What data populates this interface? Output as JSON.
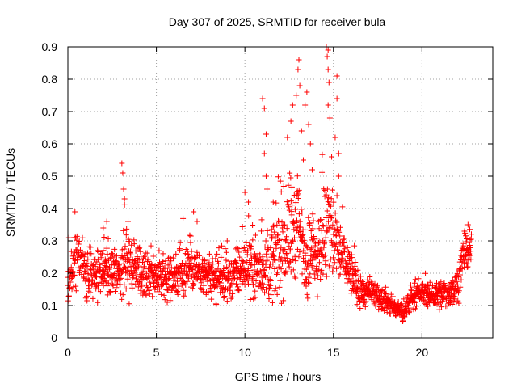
{
  "chart_data": {
    "type": "scatter",
    "title": "Day 307 of 2025, SRMTID for receiver bula",
    "xlabel": "GPS time / hours",
    "ylabel": "SRMTID / TECUs",
    "xlim": [
      0,
      24
    ],
    "ylim": [
      0,
      0.9
    ],
    "x_ticks": [
      0,
      5,
      10,
      15,
      20
    ],
    "y_ticks": [
      0,
      0.1,
      0.2,
      0.3,
      0.4,
      0.5,
      0.6,
      0.7,
      0.8,
      0.9
    ],
    "grid": true,
    "marker": "+",
    "color": "#ff0000",
    "envelope": {
      "hours": [
        0,
        0.3,
        0.5,
        1.0,
        1.5,
        2.0,
        2.5,
        3.0,
        3.2,
        3.5,
        4.0,
        5.0,
        6.0,
        6.5,
        7.0,
        7.5,
        8.0,
        9.0,
        10.0,
        10.5,
        11.0,
        11.5,
        12.0,
        12.5,
        13.0,
        13.5,
        14.0,
        14.5,
        14.8,
        15.2,
        15.6,
        16.0,
        16.5,
        17.0,
        18.0,
        18.5,
        19.0,
        19.5,
        20.0,
        20.5,
        21.0,
        21.5,
        22.0,
        22.3,
        22.8
      ],
      "median": [
        0.17,
        0.22,
        0.26,
        0.2,
        0.2,
        0.22,
        0.21,
        0.2,
        0.26,
        0.23,
        0.2,
        0.19,
        0.19,
        0.2,
        0.24,
        0.19,
        0.18,
        0.18,
        0.22,
        0.22,
        0.21,
        0.24,
        0.27,
        0.33,
        0.34,
        0.25,
        0.26,
        0.32,
        0.35,
        0.28,
        0.25,
        0.2,
        0.14,
        0.14,
        0.11,
        0.09,
        0.08,
        0.13,
        0.14,
        0.13,
        0.13,
        0.14,
        0.16,
        0.25,
        0.27
      ],
      "spread": [
        0.06,
        0.07,
        0.08,
        0.06,
        0.07,
        0.07,
        0.06,
        0.07,
        0.12,
        0.08,
        0.06,
        0.06,
        0.06,
        0.06,
        0.08,
        0.06,
        0.06,
        0.06,
        0.07,
        0.08,
        0.08,
        0.11,
        0.13,
        0.16,
        0.15,
        0.12,
        0.1,
        0.15,
        0.18,
        0.1,
        0.08,
        0.06,
        0.04,
        0.04,
        0.03,
        0.03,
        0.03,
        0.03,
        0.03,
        0.03,
        0.04,
        0.04,
        0.05,
        0.05,
        0.04
      ]
    },
    "peaks": [
      {
        "x": 0.4,
        "y": 0.39
      },
      {
        "x": 2.0,
        "y": 0.34
      },
      {
        "x": 2.2,
        "y": 0.36
      },
      {
        "x": 3.05,
        "y": 0.54
      },
      {
        "x": 3.1,
        "y": 0.51
      },
      {
        "x": 3.15,
        "y": 0.46
      },
      {
        "x": 3.2,
        "y": 0.43
      },
      {
        "x": 3.4,
        "y": 0.36
      },
      {
        "x": 7.1,
        "y": 0.39
      },
      {
        "x": 7.3,
        "y": 0.36
      },
      {
        "x": 9.0,
        "y": 0.3
      },
      {
        "x": 10.0,
        "y": 0.45
      },
      {
        "x": 10.2,
        "y": 0.42
      },
      {
        "x": 11.0,
        "y": 0.74
      },
      {
        "x": 11.1,
        "y": 0.71
      },
      {
        "x": 11.2,
        "y": 0.63
      },
      {
        "x": 11.1,
        "y": 0.57
      },
      {
        "x": 11.2,
        "y": 0.5
      },
      {
        "x": 11.25,
        "y": 0.46
      },
      {
        "x": 11.6,
        "y": 0.42
      },
      {
        "x": 12.4,
        "y": 0.62
      },
      {
        "x": 12.6,
        "y": 0.67
      },
      {
        "x": 12.7,
        "y": 0.72
      },
      {
        "x": 12.9,
        "y": 0.75
      },
      {
        "x": 13.0,
        "y": 0.83
      },
      {
        "x": 13.05,
        "y": 0.86
      },
      {
        "x": 13.1,
        "y": 0.78
      },
      {
        "x": 13.2,
        "y": 0.64
      },
      {
        "x": 13.4,
        "y": 0.72
      },
      {
        "x": 13.5,
        "y": 0.76
      },
      {
        "x": 13.6,
        "y": 0.66
      },
      {
        "x": 13.7,
        "y": 0.6
      },
      {
        "x": 13.8,
        "y": 0.52
      },
      {
        "x": 13.3,
        "y": 0.55
      },
      {
        "x": 14.6,
        "y": 0.9
      },
      {
        "x": 14.7,
        "y": 0.89
      },
      {
        "x": 14.65,
        "y": 0.87
      },
      {
        "x": 14.7,
        "y": 0.83
      },
      {
        "x": 14.75,
        "y": 0.79
      },
      {
        "x": 14.7,
        "y": 0.72
      },
      {
        "x": 14.8,
        "y": 0.68
      },
      {
        "x": 14.9,
        "y": 0.56
      },
      {
        "x": 15.2,
        "y": 0.81
      },
      {
        "x": 15.2,
        "y": 0.74
      },
      {
        "x": 15.1,
        "y": 0.62
      },
      {
        "x": 15.3,
        "y": 0.57
      },
      {
        "x": 15.3,
        "y": 0.5
      },
      {
        "x": 15.2,
        "y": 0.44
      },
      {
        "x": 22.4,
        "y": 0.33
      },
      {
        "x": 22.6,
        "y": 0.35
      }
    ]
  }
}
